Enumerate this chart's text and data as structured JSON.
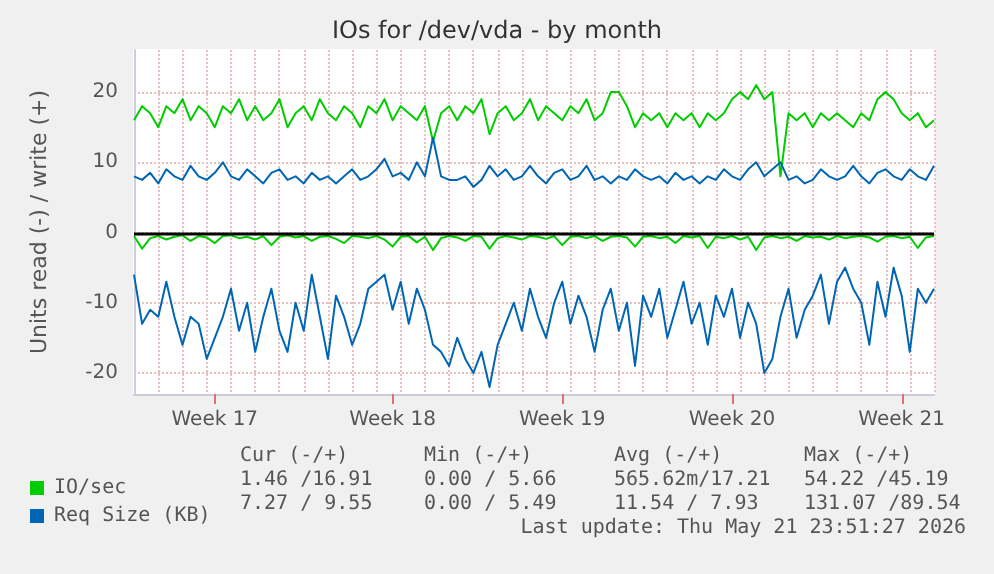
{
  "chart_data": {
    "type": "line",
    "title": "IOs for /dev/vda - by month",
    "ylabel": "Units read (-) / write (+)",
    "categories": [
      null,
      null,
      null,
      null,
      null,
      null,
      null,
      null,
      null,
      null,
      "Week 17",
      null,
      null,
      null,
      null,
      null,
      null,
      null,
      null,
      null,
      null,
      null,
      null,
      null,
      null,
      null,
      null,
      null,
      null,
      null,
      null,
      null,
      "Week 18",
      null,
      null,
      null,
      null,
      null,
      null,
      null,
      null,
      null,
      null,
      null,
      null,
      null,
      null,
      null,
      null,
      null,
      null,
      null,
      null,
      "Week 19",
      null,
      null,
      null,
      null,
      null,
      null,
      null,
      null,
      null,
      null,
      null,
      null,
      null,
      null,
      null,
      null,
      null,
      null,
      null,
      null,
      "Week 20",
      null,
      null,
      null,
      null,
      null,
      null,
      null,
      null,
      null,
      null,
      null,
      null,
      null,
      null,
      null,
      null,
      null,
      null,
      null,
      null,
      "Week 21",
      null,
      null,
      null,
      null
    ],
    "series": [
      {
        "name": "IO/sec",
        "color": "#00cc00",
        "values": [
          16,
          18,
          17,
          15,
          18,
          17,
          19,
          16,
          18,
          17,
          15,
          18,
          17,
          19,
          16,
          18,
          16,
          17,
          19,
          15,
          17,
          18,
          16,
          19,
          17,
          16,
          18,
          17,
          15,
          18,
          17,
          19,
          16,
          18,
          17,
          16,
          18,
          13,
          17,
          18,
          16,
          18,
          17,
          19,
          14,
          17,
          18,
          16,
          17,
          19,
          16,
          18,
          17,
          16,
          18,
          17,
          19,
          16,
          17,
          20,
          20,
          18,
          15,
          17,
          16,
          17,
          15,
          17,
          16,
          17,
          15,
          17,
          16,
          17,
          19,
          20,
          19,
          21,
          19,
          20,
          8,
          17,
          16,
          17,
          15,
          17,
          16,
          17,
          16,
          15,
          17,
          16,
          19,
          20,
          19,
          17,
          16,
          17,
          15,
          16
        ]
      },
      {
        "color": "#00cc00",
        "values": [
          -0.5,
          -2.3,
          -0.8,
          -0.5,
          -1,
          -0.6,
          -0.4,
          -1.2,
          -0.5,
          -0.7,
          -1.5,
          -0.5,
          -0.4,
          -0.8,
          -0.6,
          -1,
          -0.5,
          -1.8,
          -0.6,
          -0.4,
          -0.7,
          -0.5,
          -1.2,
          -0.6,
          -0.5,
          -0.9,
          -1.5,
          -0.5,
          -0.6,
          -0.8,
          -0.5,
          -1,
          -2,
          -0.6,
          -0.5,
          -1.4,
          -0.6,
          -2.5,
          -0.8,
          -0.5,
          -0.7,
          -1.2,
          -0.5,
          -0.6,
          -2.3,
          -0.8,
          -0.5,
          -0.7,
          -1,
          -0.5,
          -0.6,
          -0.9,
          -0.5,
          -1.8,
          -0.6,
          -0.5,
          -0.8,
          -0.5,
          -1.2,
          -0.6,
          -0.5,
          -0.7,
          -2,
          -0.6,
          -0.5,
          -0.8,
          -0.6,
          -1.5,
          -0.5,
          -0.7,
          -0.5,
          -2.2,
          -0.6,
          -0.8,
          -0.5,
          -1,
          -0.6,
          -2.5,
          -0.7,
          -0.5,
          -0.8,
          -0.6,
          -1.2,
          -0.5,
          -0.7,
          -0.6,
          -1,
          -0.5,
          -0.8,
          -0.6,
          -0.5,
          -0.7,
          -1.3,
          -0.6,
          -0.5,
          -0.8,
          -0.6,
          -2.2,
          -0.7,
          -0.5
        ]
      },
      {
        "name": "Req Size (KB)",
        "color": "#0066b3",
        "values": [
          8,
          7.5,
          8.5,
          7,
          9,
          8,
          7.5,
          9.5,
          8,
          7.5,
          8.5,
          10,
          8,
          7.5,
          9,
          8,
          7,
          8.5,
          9,
          7.5,
          8,
          7,
          8.5,
          7.5,
          8,
          7,
          8,
          9,
          7.5,
          8,
          9,
          10.5,
          8,
          8.5,
          7.5,
          10,
          8,
          13.5,
          8,
          7.5,
          7.5,
          8,
          6.5,
          7.5,
          9.5,
          8,
          9,
          7.5,
          8,
          9.5,
          8,
          7,
          8.5,
          9,
          7.5,
          8,
          9.5,
          7.5,
          8,
          7,
          8,
          7.5,
          9,
          8,
          7.5,
          8,
          7,
          8.5,
          7.5,
          8,
          7,
          8,
          7.5,
          9,
          8,
          7.5,
          9,
          10,
          8,
          9,
          10,
          7.5,
          8,
          7,
          7.5,
          9,
          8,
          7.5,
          8,
          9.5,
          8,
          7,
          8.5,
          9,
          8,
          7.5,
          9,
          8,
          7.5,
          9.5
        ]
      },
      {
        "color": "#0066b3",
        "values": [
          -6,
          -13,
          -11,
          -12,
          -7,
          -12,
          -16,
          -12,
          -13,
          -18,
          -15,
          -12,
          -8,
          -14,
          -10,
          -17,
          -12,
          -8,
          -14,
          -17,
          -10,
          -14,
          -6,
          -12,
          -18,
          -9,
          -12,
          -16,
          -13,
          -8,
          -7,
          -6,
          -11,
          -7,
          -13,
          -8,
          -11,
          -16,
          -17,
          -19,
          -15,
          -18,
          -20,
          -17,
          -22,
          -16,
          -13,
          -10,
          -14,
          -8,
          -12,
          -15,
          -10,
          -7,
          -13,
          -9,
          -12,
          -17,
          -11,
          -8,
          -14,
          -10,
          -19,
          -9,
          -12,
          -8,
          -15,
          -11,
          -7,
          -13,
          -10,
          -16,
          -9,
          -12,
          -8,
          -15,
          -10,
          -13,
          -20,
          -18,
          -12,
          -8,
          -15,
          -11,
          -9,
          -6,
          -13,
          -7,
          -5,
          -8,
          -10,
          -16,
          -7,
          -12,
          -5,
          -9,
          -17,
          -8,
          -10,
          -8
        ]
      }
    ],
    "ylim": [
      -23,
      26
    ],
    "yticks": [
      -20,
      -10,
      0,
      10,
      20
    ],
    "ref_lines": [
      {
        "axis": "y",
        "value": 0,
        "color": "#000000"
      }
    ],
    "grid": true,
    "legend": "bottom left",
    "marker": "none",
    "line_style": "solid",
    "annotations": [
      "Cur (-/+)",
      "Min (-/+)",
      "Avg (-/+)",
      "Max (-/+)",
      "1.46 /16.91",
      "0.00 / 5.66",
      "565.62m/17.21",
      "54.22 /45.19",
      "7.27 / 9.55",
      "0.00 / 5.49",
      "11.54 / 7.93",
      "131.07 /89.54",
      "Last update: Thu May 21 23:51:27 2026"
    ]
  }
}
